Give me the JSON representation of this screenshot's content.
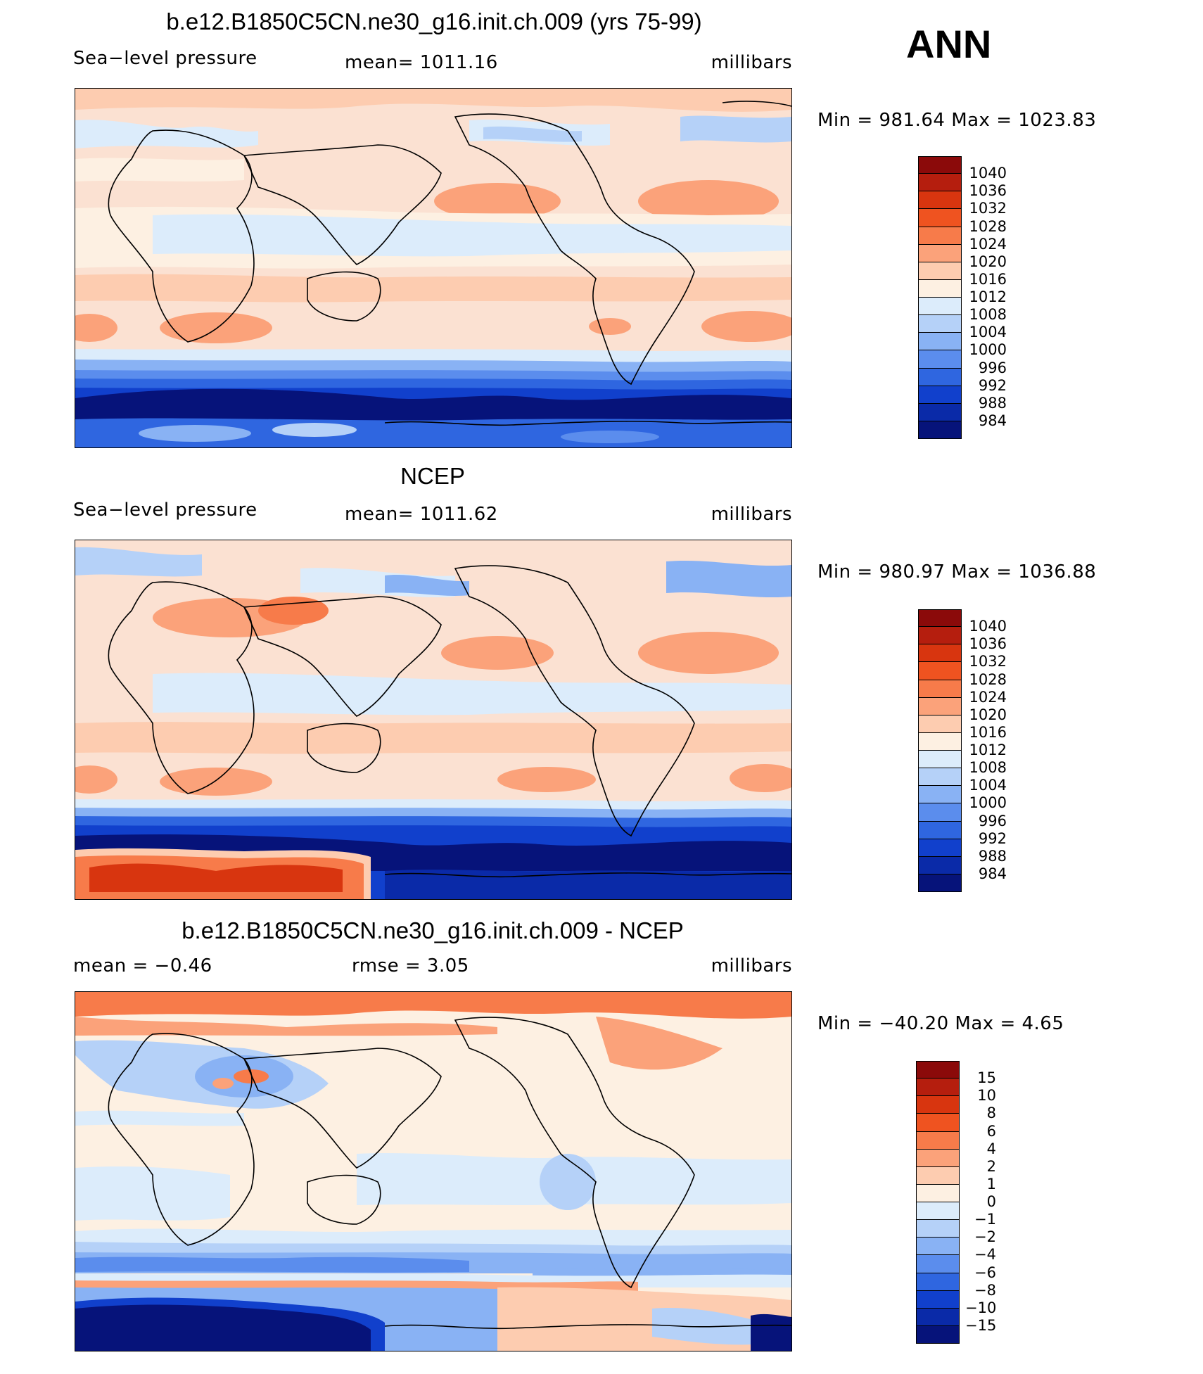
{
  "ann_label": "ANN",
  "panels": [
    {
      "title": "b.e12.B1850C5CN.ne30_g16.init.ch.009 (yrs 75-99)",
      "left_label": "Sea−level pressure",
      "center_label": "mean=  1011.16",
      "right_label": "millibars",
      "minmax": "Min  =  981.64  Max  =  1023.83",
      "colorbar": "abs"
    },
    {
      "title": "NCEP",
      "left_label": "Sea−level pressure",
      "center_label": "mean=  1011.62",
      "right_label": "millibars",
      "minmax": "Min  =  980.97  Max  =  1036.88",
      "colorbar": "abs"
    },
    {
      "title": "b.e12.B1850C5CN.ne30_g16.init.ch.009 - NCEP",
      "left_label": "mean  =    −0.46",
      "center_label": "rmse  =     3.05",
      "right_label": "millibars",
      "minmax": "Min  =  −40.20  Max  =     4.65",
      "colorbar": "diff"
    }
  ],
  "colorbars": {
    "abs": {
      "labels": [
        "1040",
        "1036",
        "1032",
        "1028",
        "1024",
        "1020",
        "1016",
        "1012",
        "1008",
        "1004",
        "1000",
        "996",
        "992",
        "988",
        "984"
      ],
      "colors": [
        "#8b0a0a",
        "#b51e0e",
        "#d8350f",
        "#ef5320",
        "#f77b4a",
        "#fba27a",
        "#fdccb0",
        "#fdf0e2",
        "#dcecfb",
        "#b5d1f8",
        "#89b2f4",
        "#5b8ded",
        "#2f66e0",
        "#1140cc",
        "#0a2aa8",
        "#06137a"
      ]
    },
    "diff": {
      "labels": [
        "15",
        "10",
        "8",
        "6",
        "4",
        "2",
        "1",
        "0",
        "−1",
        "−2",
        "−4",
        "−6",
        "−8",
        "−10",
        "−15"
      ],
      "colors": [
        "#8b0a0a",
        "#b51e0e",
        "#d8350f",
        "#ef5320",
        "#f77b4a",
        "#fba27a",
        "#fdccb0",
        "#fdf0e2",
        "#dcecfb",
        "#b5d1f8",
        "#89b2f4",
        "#5b8ded",
        "#2f66e0",
        "#1140cc",
        "#0a2aa8",
        "#06137a"
      ]
    }
  },
  "chart_data": [
    {
      "type": "heatmap",
      "title": "b.e12.B1850C5CN.ne30_g16.init.ch.009 (yrs 75-99)",
      "variable": "Sea−level pressure",
      "units": "millibars",
      "mean": 1011.16,
      "min": 981.64,
      "max": 1023.83,
      "contour_levels": [
        984,
        988,
        992,
        996,
        1000,
        1004,
        1008,
        1012,
        1016,
        1020,
        1024,
        1028,
        1032,
        1036,
        1040
      ]
    },
    {
      "type": "heatmap",
      "title": "NCEP",
      "variable": "Sea−level pressure",
      "units": "millibars",
      "mean": 1011.62,
      "min": 980.97,
      "max": 1036.88,
      "contour_levels": [
        984,
        988,
        992,
        996,
        1000,
        1004,
        1008,
        1012,
        1016,
        1020,
        1024,
        1028,
        1032,
        1036,
        1040
      ]
    },
    {
      "type": "heatmap",
      "title": "b.e12.B1850C5CN.ne30_g16.init.ch.009 - NCEP",
      "units": "millibars",
      "mean": -0.46,
      "rmse": 3.05,
      "min": -40.2,
      "max": 4.65,
      "contour_levels": [
        -15,
        -10,
        -8,
        -6,
        -4,
        -2,
        -1,
        0,
        1,
        2,
        4,
        6,
        8,
        10,
        15
      ]
    }
  ]
}
